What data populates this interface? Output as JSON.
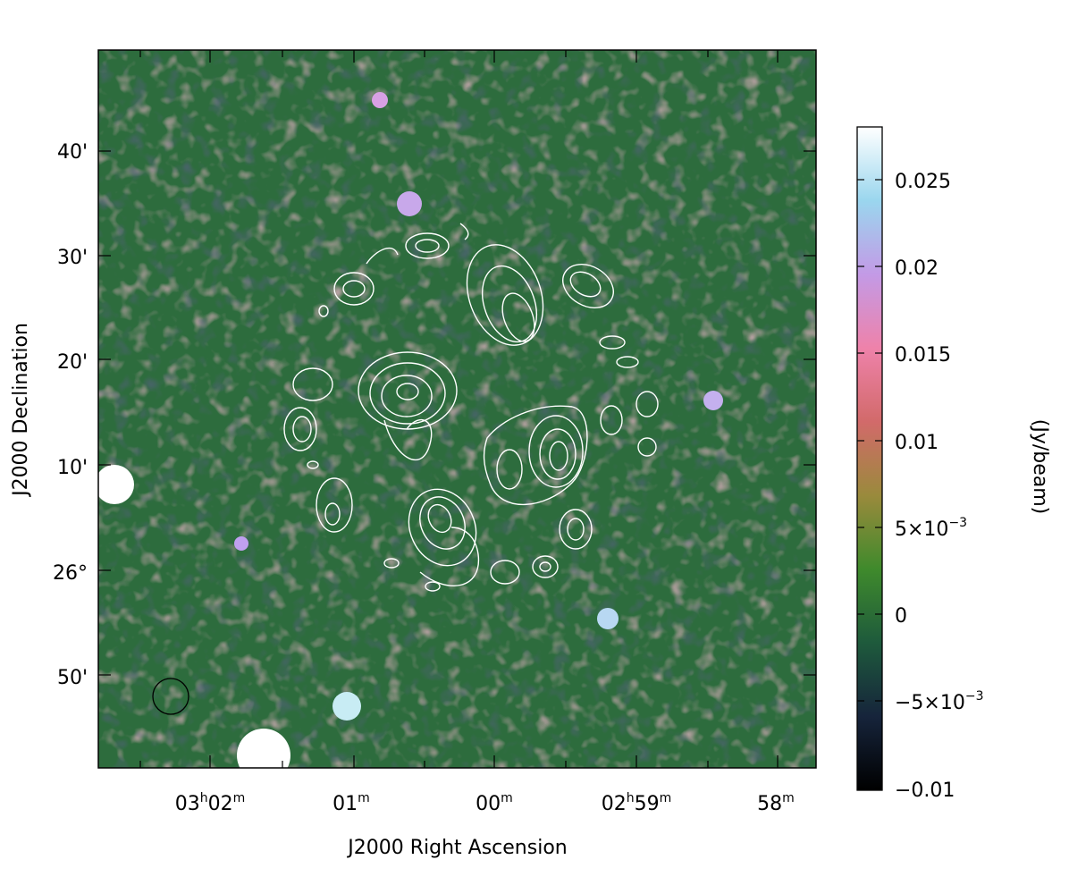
{
  "figure": {
    "xlabel": "J2000 Right Ascension",
    "ylabel": "J2000 Declination",
    "colorbar_label": "(Jy/beam)"
  },
  "axes": {
    "ra_ticks": [
      {
        "h": "03",
        "m": "02"
      },
      {
        "h": "",
        "m": "01"
      },
      {
        "h": "",
        "m": "00"
      },
      {
        "h": "02",
        "m": "59"
      },
      {
        "h": "",
        "m": "58"
      }
    ],
    "dec_ticks": [
      "40'",
      "30'",
      "20'",
      "10'",
      "26°",
      "50'"
    ]
  },
  "colorbar": {
    "colors": [
      "#000000",
      "#16243b",
      "#1e5a3c",
      "#3f8a2c",
      "#9a8a3c",
      "#d26a6a",
      "#ee82aa",
      "#c39ae6",
      "#9ad6ee",
      "#ffffff"
    ],
    "ticks": [
      {
        "label": "0.025"
      },
      {
        "label": "0.02"
      },
      {
        "label": "0.015"
      },
      {
        "label": "0.01"
      },
      {
        "label": "5×10",
        "exp": "−3"
      },
      {
        "label": "0"
      },
      {
        "label": "−5×10",
        "exp": "−3"
      },
      {
        "label": "−0.01"
      }
    ]
  }
}
